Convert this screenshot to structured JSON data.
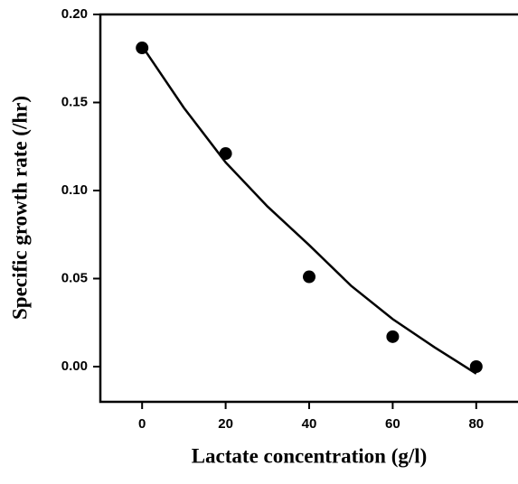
{
  "chart_data": {
    "type": "scatter",
    "x_label": "Lactate concentration (g/l)",
    "y_label": "Specific growth rate (/hr)",
    "series": [
      {
        "mode": "markers",
        "color": "#000000",
        "x": [
          0,
          20,
          40,
          60,
          80
        ],
        "values": [
          0.181,
          0.121,
          0.051,
          0.017,
          0.0
        ]
      },
      {
        "mode": "line",
        "color": "#000000",
        "x": [
          0,
          10,
          20,
          30,
          40,
          50,
          60,
          70,
          80
        ],
        "values": [
          0.182,
          0.147,
          0.116,
          0.091,
          0.069,
          0.046,
          0.027,
          0.011,
          -0.004
        ]
      }
    ],
    "xlim": [
      -10,
      90
    ],
    "xticks": [
      0,
      20,
      40,
      60,
      80
    ],
    "ylim": [
      -0.02,
      0.2
    ],
    "yticks": [
      {
        "value": 0,
        "label": "0.00"
      },
      0.05,
      {
        "value": 0.1,
        "label": "0.10"
      },
      0.15,
      {
        "value": 0.2,
        "label": "0.20"
      }
    ]
  }
}
